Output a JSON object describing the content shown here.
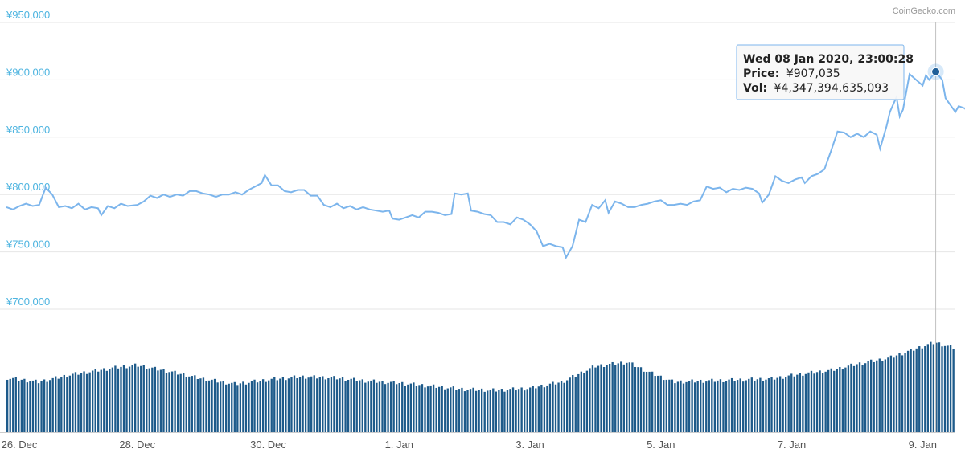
{
  "credit": "CoinGecko.com",
  "tooltip": {
    "date": "Wed 08 Jan 2020, 23:00:28",
    "price_label": "Price:",
    "price_value": "¥907,035",
    "vol_label": "Vol:",
    "vol_value": "¥4,347,394,635,093"
  },
  "colors": {
    "line": "#7cb5ec",
    "bars": "#1d5a8a",
    "axis_labels": "#4db4e0",
    "grid": "#e6e6e6",
    "crosshair": "#c0c0c0",
    "marker": "#1f5f99"
  },
  "chart_data": {
    "type": "line",
    "title": "",
    "xlabel": "",
    "ylabel": "",
    "ylim": [
      700000,
      950000
    ],
    "y_ticks": [
      "¥950,000",
      "¥900,000",
      "¥850,000",
      "¥800,000",
      "¥750,000",
      "¥700,000"
    ],
    "y_tick_values": [
      950000,
      900000,
      850000,
      800000,
      750000,
      700000
    ],
    "x_tick_labels": [
      "26. Dec",
      "28. Dec",
      "30. Dec",
      "1. Jan",
      "3. Jan",
      "5. Jan",
      "7. Jan",
      "9. Jan"
    ],
    "x_tick_days": [
      0,
      2,
      4,
      6,
      8,
      10,
      12,
      14
    ],
    "x_range_days": [
      0,
      14.5
    ],
    "grid": true,
    "series": [
      {
        "values": [
          [
            0.0,
            789000
          ],
          [
            0.1,
            787000
          ],
          [
            0.2,
            790000
          ],
          [
            0.3,
            792000
          ],
          [
            0.4,
            790000
          ],
          [
            0.5,
            791000
          ],
          [
            0.6,
            806000
          ],
          [
            0.7,
            800000
          ],
          [
            0.8,
            789000
          ],
          [
            0.9,
            790000
          ],
          [
            1.0,
            788000
          ],
          [
            1.1,
            792000
          ],
          [
            1.2,
            787000
          ],
          [
            1.3,
            789000
          ],
          [
            1.4,
            788000
          ],
          [
            1.45,
            782000
          ],
          [
            1.55,
            790000
          ],
          [
            1.65,
            788000
          ],
          [
            1.75,
            792000
          ],
          [
            1.85,
            790000
          ],
          [
            2.0,
            791000
          ],
          [
            2.1,
            794000
          ],
          [
            2.2,
            799000
          ],
          [
            2.3,
            797000
          ],
          [
            2.4,
            800000
          ],
          [
            2.5,
            798000
          ],
          [
            2.6,
            800000
          ],
          [
            2.7,
            799000
          ],
          [
            2.8,
            803000
          ],
          [
            2.9,
            803000
          ],
          [
            3.0,
            801000
          ],
          [
            3.1,
            800000
          ],
          [
            3.2,
            798000
          ],
          [
            3.3,
            800000
          ],
          [
            3.4,
            800000
          ],
          [
            3.5,
            802000
          ],
          [
            3.6,
            800000
          ],
          [
            3.7,
            804000
          ],
          [
            3.8,
            807000
          ],
          [
            3.9,
            810000
          ],
          [
            3.95,
            817000
          ],
          [
            4.05,
            808000
          ],
          [
            4.15,
            808000
          ],
          [
            4.25,
            803000
          ],
          [
            4.35,
            802000
          ],
          [
            4.45,
            804000
          ],
          [
            4.55,
            804000
          ],
          [
            4.65,
            799000
          ],
          [
            4.75,
            799000
          ],
          [
            4.85,
            791000
          ],
          [
            4.95,
            789000
          ],
          [
            5.05,
            792000
          ],
          [
            5.15,
            788000
          ],
          [
            5.25,
            790000
          ],
          [
            5.35,
            787000
          ],
          [
            5.45,
            789000
          ],
          [
            5.55,
            787000
          ],
          [
            5.65,
            786000
          ],
          [
            5.75,
            785000
          ],
          [
            5.85,
            786000
          ],
          [
            5.9,
            779000
          ],
          [
            6.0,
            778000
          ],
          [
            6.1,
            780000
          ],
          [
            6.2,
            782000
          ],
          [
            6.3,
            780000
          ],
          [
            6.4,
            785000
          ],
          [
            6.5,
            785000
          ],
          [
            6.6,
            784000
          ],
          [
            6.7,
            782000
          ],
          [
            6.8,
            783000
          ],
          [
            6.85,
            801000
          ],
          [
            6.95,
            800000
          ],
          [
            7.05,
            801000
          ],
          [
            7.1,
            786000
          ],
          [
            7.2,
            785000
          ],
          [
            7.3,
            783000
          ],
          [
            7.4,
            782000
          ],
          [
            7.5,
            776000
          ],
          [
            7.6,
            776000
          ],
          [
            7.7,
            774000
          ],
          [
            7.8,
            780000
          ],
          [
            7.9,
            778000
          ],
          [
            8.0,
            774000
          ],
          [
            8.1,
            768000
          ],
          [
            8.2,
            755000
          ],
          [
            8.3,
            757000
          ],
          [
            8.4,
            755000
          ],
          [
            8.5,
            754000
          ],
          [
            8.55,
            745000
          ],
          [
            8.65,
            755000
          ],
          [
            8.75,
            778000
          ],
          [
            8.85,
            776000
          ],
          [
            8.95,
            791000
          ],
          [
            9.05,
            788000
          ],
          [
            9.15,
            795000
          ],
          [
            9.2,
            784000
          ],
          [
            9.3,
            794000
          ],
          [
            9.4,
            792000
          ],
          [
            9.5,
            789000
          ],
          [
            9.6,
            789000
          ],
          [
            9.7,
            791000
          ],
          [
            9.8,
            792000
          ],
          [
            9.9,
            794000
          ],
          [
            10.0,
            795000
          ],
          [
            10.1,
            791000
          ],
          [
            10.2,
            791000
          ],
          [
            10.3,
            792000
          ],
          [
            10.4,
            791000
          ],
          [
            10.5,
            794000
          ],
          [
            10.6,
            795000
          ],
          [
            10.7,
            807000
          ],
          [
            10.8,
            805000
          ],
          [
            10.9,
            806000
          ],
          [
            11.0,
            802000
          ],
          [
            11.1,
            805000
          ],
          [
            11.2,
            804000
          ],
          [
            11.3,
            806000
          ],
          [
            11.4,
            805000
          ],
          [
            11.5,
            801000
          ],
          [
            11.55,
            793000
          ],
          [
            11.65,
            800000
          ],
          [
            11.75,
            816000
          ],
          [
            11.85,
            812000
          ],
          [
            11.95,
            810000
          ],
          [
            12.05,
            813000
          ],
          [
            12.15,
            815000
          ],
          [
            12.2,
            810000
          ],
          [
            12.3,
            816000
          ],
          [
            12.4,
            818000
          ],
          [
            12.5,
            822000
          ],
          [
            12.6,
            838000
          ],
          [
            12.7,
            855000
          ],
          [
            12.8,
            854000
          ],
          [
            12.9,
            850000
          ],
          [
            13.0,
            853000
          ],
          [
            13.1,
            850000
          ],
          [
            13.2,
            855000
          ],
          [
            13.3,
            852000
          ],
          [
            13.35,
            840000
          ],
          [
            13.45,
            860000
          ],
          [
            13.5,
            872000
          ],
          [
            13.6,
            885000
          ],
          [
            13.65,
            868000
          ],
          [
            13.7,
            874000
          ],
          [
            13.8,
            905000
          ],
          [
            13.9,
            900000
          ],
          [
            14.0,
            895000
          ],
          [
            14.05,
            904000
          ],
          [
            14.1,
            900000
          ],
          [
            14.2,
            907035
          ],
          [
            14.3,
            900000
          ],
          [
            14.35,
            884000
          ],
          [
            14.45,
            876000
          ],
          [
            14.5,
            872000
          ],
          [
            14.55,
            877000
          ],
          [
            14.65,
            875000
          ],
          [
            14.7,
            869000
          ],
          [
            14.85,
            877000
          ]
        ]
      }
    ],
    "volume_bars": [
      [
        0.0,
        0.52
      ],
      [
        0.5,
        0.48
      ],
      [
        1.0,
        0.55
      ],
      [
        1.7,
        0.62
      ],
      [
        2.0,
        0.64
      ],
      [
        2.5,
        0.58
      ],
      [
        3.0,
        0.51
      ],
      [
        3.5,
        0.46
      ],
      [
        4.0,
        0.5
      ],
      [
        4.5,
        0.53
      ],
      [
        5.0,
        0.52
      ],
      [
        5.5,
        0.49
      ],
      [
        6.0,
        0.47
      ],
      [
        6.5,
        0.44
      ],
      [
        7.0,
        0.41
      ],
      [
        7.5,
        0.4
      ],
      [
        8.0,
        0.42
      ],
      [
        8.5,
        0.48
      ],
      [
        9.0,
        0.63
      ],
      [
        9.5,
        0.67
      ],
      [
        9.8,
        0.58
      ],
      [
        10.2,
        0.48
      ],
      [
        10.7,
        0.49
      ],
      [
        11.2,
        0.5
      ],
      [
        11.7,
        0.51
      ],
      [
        12.2,
        0.56
      ],
      [
        12.6,
        0.59
      ],
      [
        13.0,
        0.65
      ],
      [
        13.5,
        0.71
      ],
      [
        14.0,
        0.82
      ],
      [
        14.2,
        0.86
      ],
      [
        14.5,
        0.8
      ],
      [
        14.85,
        0.76
      ]
    ]
  }
}
